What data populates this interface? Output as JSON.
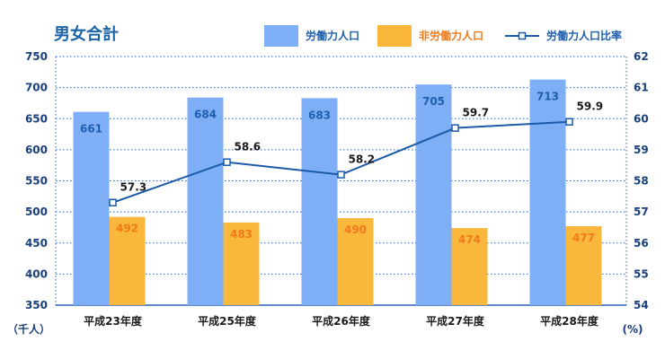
{
  "colors": {
    "title": "#1a63a6",
    "axis_text": "#1a3f7a",
    "bar_labor": "#7eaef6",
    "bar_nonlabor": "#f9b73b",
    "labor_label": "#1f5fae",
    "nonlabor_label": "#f07b1c",
    "line": "#1a5aa6",
    "grid": "#2d64b8"
  },
  "chart_data": {
    "type": "bar",
    "title": "男女合計",
    "categories": [
      "平成23年度",
      "平成25年度",
      "平成26年度",
      "平成27年度",
      "平成28年度"
    ],
    "series": [
      {
        "name": "労働力人口",
        "kind": "bar",
        "axis": "left",
        "values": [
          661,
          684,
          683,
          705,
          713
        ]
      },
      {
        "name": "非労働力人口",
        "kind": "bar",
        "axis": "left",
        "values": [
          492,
          483,
          490,
          474,
          477
        ]
      },
      {
        "name": "労働力人口比率",
        "kind": "line",
        "axis": "right",
        "values": [
          57.3,
          58.6,
          58.2,
          59.7,
          59.9
        ]
      }
    ],
    "y_left": {
      "unit": "（千人）",
      "ylim": [
        350,
        750
      ],
      "ticks": [
        350,
        400,
        450,
        500,
        550,
        600,
        650,
        700,
        750
      ]
    },
    "y_right": {
      "unit": "(%)",
      "ylim": [
        54,
        62
      ],
      "ticks": [
        54,
        55,
        56,
        57,
        58,
        59,
        60,
        61,
        62
      ]
    },
    "grid": true,
    "legend_position": "top"
  }
}
